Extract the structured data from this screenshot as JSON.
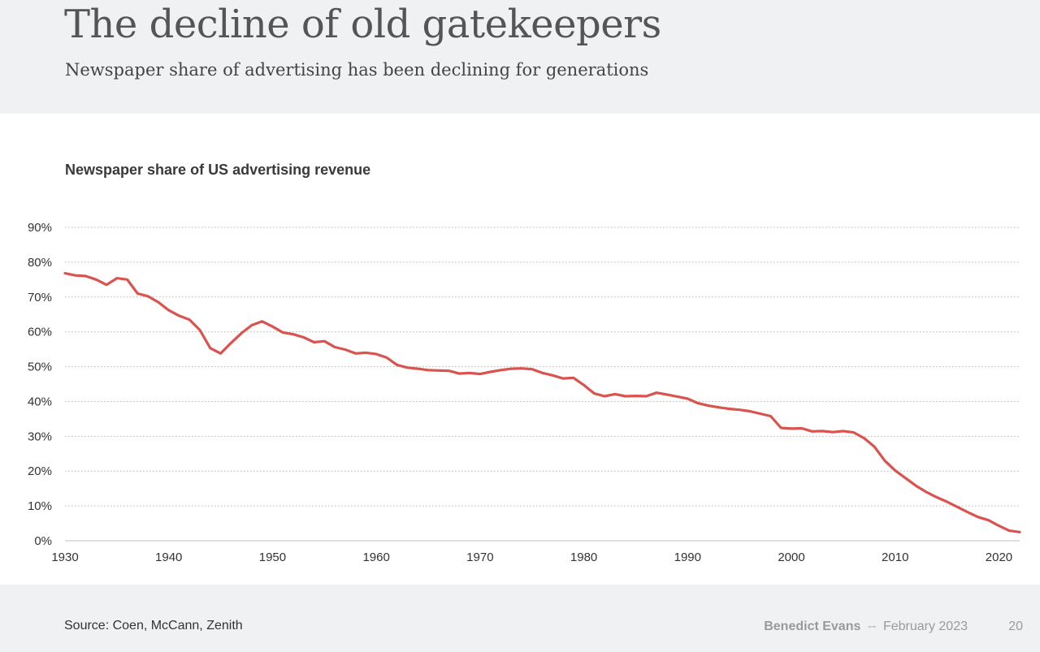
{
  "header": {
    "title": "The decline of old gatekeepers",
    "subtitle": "Newspaper share of advertising has been declining for generations"
  },
  "footer": {
    "source": "Source: Coen, McCann, Zenith",
    "author": "Benedict Evans",
    "separator": "--",
    "date": "February 2023",
    "page": "20"
  },
  "chart_data": {
    "type": "line",
    "title": "Newspaper share of US advertising revenue",
    "xlabel": "",
    "ylabel": "",
    "xlim": [
      1930,
      2022
    ],
    "ylim": [
      0,
      90
    ],
    "x_ticks": [
      "1930",
      "1940",
      "1950",
      "1960",
      "1970",
      "1980",
      "1990",
      "2000",
      "2010",
      "2020"
    ],
    "y_ticks": [
      "0%",
      "10%",
      "20%",
      "30%",
      "40%",
      "50%",
      "60%",
      "70%",
      "80%",
      "90%"
    ],
    "grid": "horizontal dotted",
    "line_color": "#d9534f",
    "series": [
      {
        "x": [
          1930,
          1931,
          1932,
          1933,
          1934,
          1935,
          1936,
          1937,
          1938,
          1939,
          1940,
          1941,
          1942,
          1943,
          1944,
          1945,
          1946,
          1947,
          1948,
          1949,
          1950,
          1951,
          1952,
          1953,
          1954,
          1955,
          1956,
          1957,
          1958,
          1959,
          1960,
          1961,
          1962,
          1963,
          1964,
          1965,
          1966,
          1967,
          1968,
          1969,
          1970,
          1971,
          1972,
          1973,
          1974,
          1975,
          1976,
          1977,
          1978,
          1979,
          1980,
          1981,
          1982,
          1983,
          1984,
          1985,
          1986,
          1987,
          1988,
          1989,
          1990,
          1991,
          1992,
          1993,
          1994,
          1995,
          1996,
          1997,
          1998,
          1999,
          2000,
          2001,
          2002,
          2003,
          2004,
          2005,
          2006,
          2007,
          2008,
          2009,
          2010,
          2011,
          2012,
          2013,
          2014,
          2015,
          2016,
          2017,
          2018,
          2019,
          2020,
          2021,
          2022
        ],
        "values": [
          76.8,
          76.2,
          76.0,
          75.0,
          73.5,
          75.4,
          75.0,
          71.0,
          70.2,
          68.5,
          66.2,
          64.6,
          63.5,
          60.5,
          55.3,
          53.8,
          56.8,
          59.6,
          61.9,
          63.0,
          61.5,
          59.8,
          59.3,
          58.4,
          57.0,
          57.3,
          55.6,
          54.9,
          53.8,
          54.0,
          53.6,
          52.6,
          50.5,
          49.7,
          49.4,
          49.0,
          48.9,
          48.8,
          48.0,
          48.2,
          47.9,
          48.5,
          49.0,
          49.4,
          49.5,
          49.3,
          48.2,
          47.5,
          46.6,
          46.8,
          44.7,
          42.3,
          41.5,
          42.1,
          41.5,
          41.6,
          41.5,
          42.5,
          42.0,
          41.4,
          40.8,
          39.5,
          38.8,
          38.3,
          37.9,
          37.6,
          37.2,
          36.5,
          35.8,
          32.4,
          32.2,
          32.3,
          31.4,
          31.5,
          31.2,
          31.5,
          31.1,
          29.5,
          27.0,
          23.0,
          20.2,
          18.0,
          15.8,
          14.0,
          12.5,
          11.2,
          9.7,
          8.2,
          6.8,
          5.9,
          4.3,
          2.9,
          2.5
        ]
      }
    ]
  }
}
